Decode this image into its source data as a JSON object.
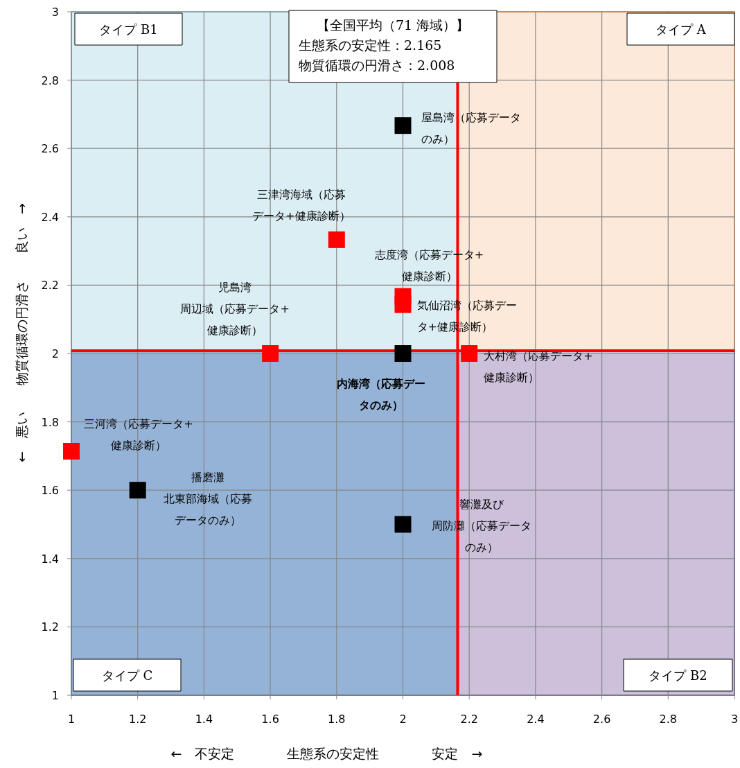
{
  "chart_data": {
    "type": "scatter",
    "xlabel": "←　不安定　　　　生態系の安定性　　　　安定　→",
    "ylabel": "←　悪い　　物質循環の円滑さ　　良い　→",
    "xlim": [
      1,
      3
    ],
    "ylim": [
      1,
      3
    ],
    "xticks": [
      1,
      1.2,
      1.4,
      1.6,
      1.8,
      2,
      2.2,
      2.4,
      2.6,
      2.8,
      3
    ],
    "yticks": [
      1,
      1.2,
      1.4,
      1.6,
      1.8,
      2,
      2.2,
      2.4,
      2.6,
      2.8,
      3
    ],
    "grid": true,
    "marker": "square",
    "series": [
      {
        "color": "#000000",
        "x": [
          2,
          2,
          1.2,
          2
        ],
        "values": [
          2.667,
          2,
          1.6,
          1.5
        ]
      },
      {
        "color": "#ff0000",
        "x": [
          1.8,
          2,
          2,
          1.6,
          2.2,
          1
        ],
        "values": [
          2.333,
          2.167,
          2.143,
          2,
          2,
          1.714
        ]
      }
    ],
    "ref_lines": [
      {
        "axis": "x",
        "value": 2.165,
        "color": "#ff0000"
      },
      {
        "axis": "y",
        "value": 2.008,
        "color": "#ff0000"
      }
    ],
    "annotations": [
      "タイプ B1",
      "タイプ A",
      "タイプ C",
      "タイプ B2",
      "【全国平均（71 海域）】",
      "生態系の安定性：2.165",
      "物質循環の円滑さ：2.008",
      {
        "text": "屋島湾（応募データのみ）",
        "x": 2,
        "y": 2.667
      },
      {
        "text": "三津湾海域（応募データ+健康診断）",
        "x": 1.8,
        "y": 2.333
      },
      {
        "text": "志度湾（応募データ+健康診断）",
        "x": 2,
        "y": 2.167
      },
      {
        "text": "気仙沼湾（応募データ+健康診断）",
        "x": 2,
        "y": 2.143
      },
      {
        "text": "児島湾周辺域（応募データ+健康診断）",
        "x": 1.6,
        "y": 2
      },
      {
        "text": "大村湾（応募データ+健康診断）",
        "x": 2.2,
        "y": 2
      },
      {
        "text": "内海湾（応募データのみ）",
        "x": 2,
        "y": 2
      },
      {
        "text": "三河湾（応募データ+健康診断）",
        "x": 1,
        "y": 1.714
      },
      {
        "text": "播磨灘北東部海域（応募データのみ）",
        "x": 1.2,
        "y": 1.6
      },
      {
        "text": "響灘及び周防灘（応募データのみ）",
        "x": 2,
        "y": 1.5
      }
    ]
  }
}
